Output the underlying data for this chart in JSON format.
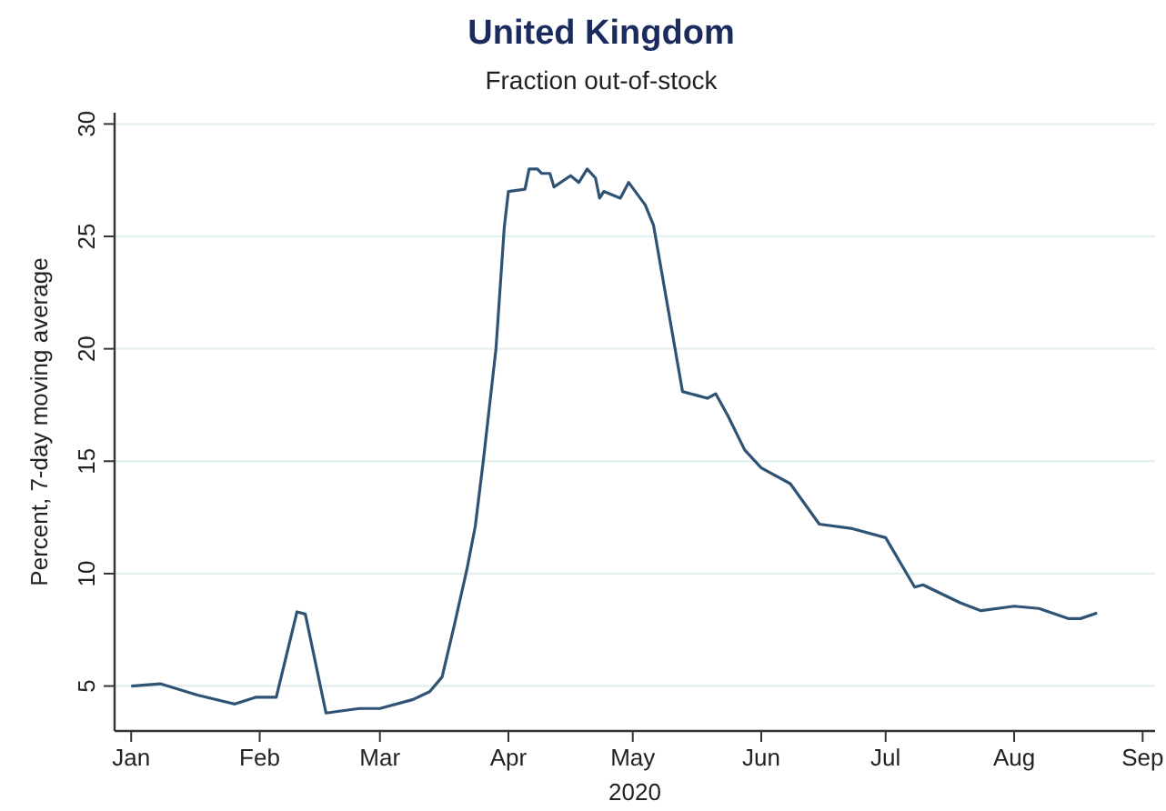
{
  "chart_data": {
    "type": "line",
    "title": "United Kingdom",
    "subtitle": "Fraction out-of-stock",
    "xlabel": "2020",
    "ylabel": "Percent, 7-day moving average",
    "x": [
      "2020-01-01",
      "2020-01-08",
      "2020-01-17",
      "2020-01-26",
      "2020-01-31",
      "2020-02-05",
      "2020-02-10",
      "2020-02-12",
      "2020-02-17",
      "2020-02-25",
      "2020-03-01",
      "2020-03-09",
      "2020-03-13",
      "2020-03-16",
      "2020-03-19",
      "2020-03-22",
      "2020-03-24",
      "2020-03-26",
      "2020-03-29",
      "2020-03-31",
      "2020-04-01",
      "2020-04-05",
      "2020-04-06",
      "2020-04-08",
      "2020-04-09",
      "2020-04-11",
      "2020-04-12",
      "2020-04-16",
      "2020-04-18",
      "2020-04-20",
      "2020-04-22",
      "2020-04-23",
      "2020-04-24",
      "2020-04-28",
      "2020-04-30",
      "2020-05-04",
      "2020-05-06",
      "2020-05-13",
      "2020-05-19",
      "2020-05-21",
      "2020-05-24",
      "2020-05-28",
      "2020-06-01",
      "2020-06-08",
      "2020-06-15",
      "2020-06-23",
      "2020-07-01",
      "2020-07-08",
      "2020-07-10",
      "2020-07-19",
      "2020-07-24",
      "2020-08-01",
      "2020-08-07",
      "2020-08-14",
      "2020-08-17",
      "2020-08-21"
    ],
    "series": [
      {
        "color": "#2f5375",
        "values": [
          5.0,
          5.1,
          4.6,
          4.2,
          4.5,
          4.5,
          8.3,
          8.2,
          3.8,
          4.0,
          4.0,
          4.4,
          4.75,
          5.4,
          7.75,
          10.2,
          12.1,
          15.1,
          20.0,
          25.4,
          27.0,
          27.1,
          28.0,
          28.0,
          27.8,
          27.8,
          27.2,
          27.7,
          27.4,
          28.0,
          27.6,
          26.7,
          27.0,
          26.7,
          27.4,
          26.4,
          25.5,
          18.1,
          17.8,
          18.0,
          17.0,
          15.5,
          14.7,
          14.0,
          12.2,
          12.0,
          11.6,
          9.4,
          9.5,
          8.7,
          8.35,
          8.55,
          8.45,
          8.0,
          8.0,
          8.25
        ]
      }
    ],
    "xlim": [
      "2019-12-28",
      "2020-09-04"
    ],
    "xticks": [
      {
        "value": "2020-01-01",
        "label": "Jan"
      },
      {
        "value": "2020-02-01",
        "label": "Feb"
      },
      {
        "value": "2020-03-01",
        "label": "Mar"
      },
      {
        "value": "2020-04-01",
        "label": "Apr"
      },
      {
        "value": "2020-05-01",
        "label": "May"
      },
      {
        "value": "2020-06-01",
        "label": "Jun"
      },
      {
        "value": "2020-07-01",
        "label": "Jul"
      },
      {
        "value": "2020-08-01",
        "label": "Aug"
      },
      {
        "value": "2020-09-01",
        "label": "Sep"
      }
    ],
    "ylim": [
      3,
      30.5
    ],
    "yticks": [
      5,
      10,
      15,
      20,
      25,
      30
    ],
    "grid": "y",
    "line_style": "solid"
  }
}
